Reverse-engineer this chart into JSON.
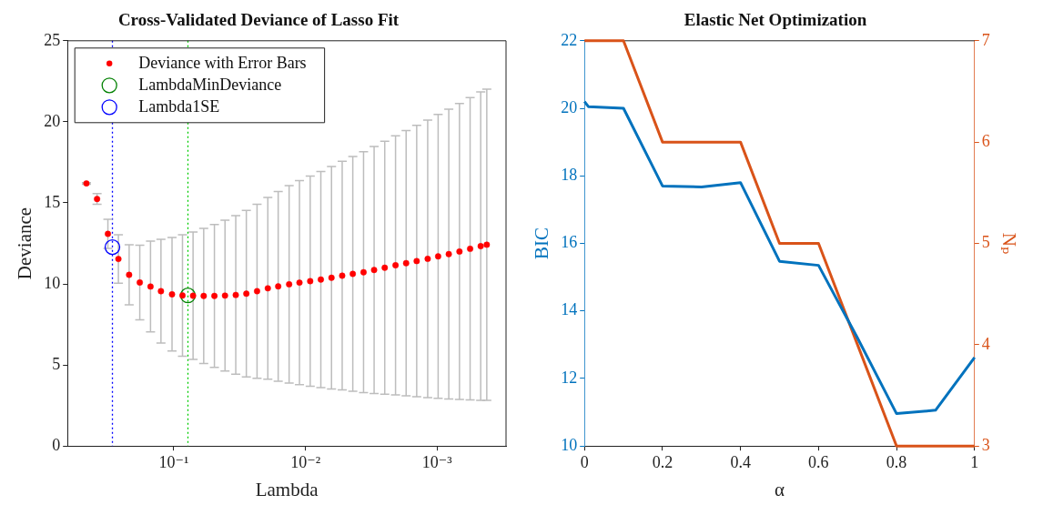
{
  "chart_data": [
    {
      "type": "scatter",
      "title": "Cross-Validated Deviance of Lasso Fit",
      "xlabel": "Lambda",
      "ylabel": "Deviance",
      "log": "x",
      "grid": false,
      "legend": "top left",
      "xlim": [
        0.64,
        0.0003
      ],
      "xticks": [
        {
          "value": 0.1,
          "label": "10⁻¹"
        },
        {
          "value": 0.01,
          "label": "10⁻²"
        },
        {
          "value": 0.001,
          "label": "10⁻³"
        }
      ],
      "ylim": [
        0,
        25
      ],
      "yticks": [
        0,
        5,
        10,
        15,
        20,
        25
      ],
      "series": [
        {
          "name": "Deviance with Error Bars",
          "color": "#ff0000",
          "marker": "circle",
          "x": [
            0.46,
            0.382,
            0.316,
            0.263,
            0.218,
            0.181,
            0.15,
            0.125,
            0.103,
            0.0858,
            0.0713,
            0.0592,
            0.0491,
            0.0408,
            0.0338,
            0.0281,
            0.0233,
            0.0193,
            0.0161,
            0.0133,
            0.0111,
            0.0092,
            0.00764,
            0.00634,
            0.00526,
            0.00437,
            0.00362,
            0.00301,
            0.0025,
            0.00207,
            0.00172,
            0.00143,
            0.00118,
            0.000983,
            0.000816,
            0.000677,
            0.000562,
            0.000467,
            0.00042
          ],
          "values": [
            16.2,
            15.24,
            13.09,
            11.54,
            10.56,
            10.09,
            9.84,
            9.55,
            9.36,
            9.29,
            9.27,
            9.26,
            9.26,
            9.28,
            9.32,
            9.4,
            9.55,
            9.73,
            9.85,
            9.98,
            10.08,
            10.17,
            10.27,
            10.38,
            10.51,
            10.62,
            10.72,
            10.86,
            11.0,
            11.15,
            11.28,
            11.41,
            11.55,
            11.7,
            11.84,
            12.0,
            12.17,
            12.33,
            12.42
          ],
          "errors": [
            0.05,
            0.33,
            0.9,
            1.5,
            1.85,
            2.3,
            2.8,
            3.2,
            3.5,
            3.75,
            3.93,
            4.17,
            4.41,
            4.65,
            4.89,
            5.13,
            5.37,
            5.61,
            5.85,
            6.09,
            6.29,
            6.48,
            6.67,
            6.86,
            7.05,
            7.24,
            7.43,
            7.62,
            7.8,
            7.99,
            8.18,
            8.37,
            8.56,
            8.75,
            8.94,
            9.13,
            9.32,
            9.51,
            9.6
          ]
        },
        {
          "name": "LambdaMinDeviance",
          "color": "#008000",
          "marker": "circle",
          "x": [
            0.078
          ],
          "values": [
            9.29
          ]
        },
        {
          "name": "Lambda1SE",
          "color": "#0000ff",
          "marker": "circle",
          "x": [
            0.292
          ],
          "values": [
            12.27
          ]
        }
      ],
      "ref_lines": [
        {
          "axis": "x",
          "value": 0.292,
          "color": "#0000ff",
          "line_style": "dotted"
        },
        {
          "axis": "x",
          "value": 0.078,
          "color": "#00cc00",
          "line_style": "dotted"
        }
      ]
    },
    {
      "type": "line",
      "title": "Elastic Net Optimization",
      "xlabel": "α",
      "ylabel": "BIC",
      "y2label": "Nₚ",
      "grid": false,
      "xlim": [
        0,
        1
      ],
      "xticks": [
        0,
        0.2,
        0.4,
        0.6,
        0.8,
        1
      ],
      "ylim": [
        10,
        22
      ],
      "yticks": [
        10,
        12,
        14,
        16,
        18,
        20,
        22
      ],
      "y2lim": [
        3,
        7
      ],
      "y2ticks": [
        3,
        4,
        5,
        6,
        7
      ],
      "series": [
        {
          "color": "#0072bd",
          "x": [
            0,
            0.01,
            0.1,
            0.2,
            0.3,
            0.4,
            0.5,
            0.6,
            0.7,
            0.8,
            0.9,
            1
          ],
          "values": [
            20.2,
            20.05,
            20.0,
            17.7,
            17.67,
            17.8,
            15.47,
            15.35,
            13.2,
            10.96,
            11.06,
            12.62
          ]
        },
        {
          "color": "#d95319",
          "axis": "y2",
          "x": [
            0,
            0.1,
            0.2,
            0.3,
            0.4,
            0.5,
            0.6,
            0.7,
            0.8,
            0.9,
            1
          ],
          "values": [
            7,
            7,
            6,
            6,
            6,
            5,
            5,
            4,
            3,
            3,
            3
          ]
        }
      ]
    }
  ]
}
